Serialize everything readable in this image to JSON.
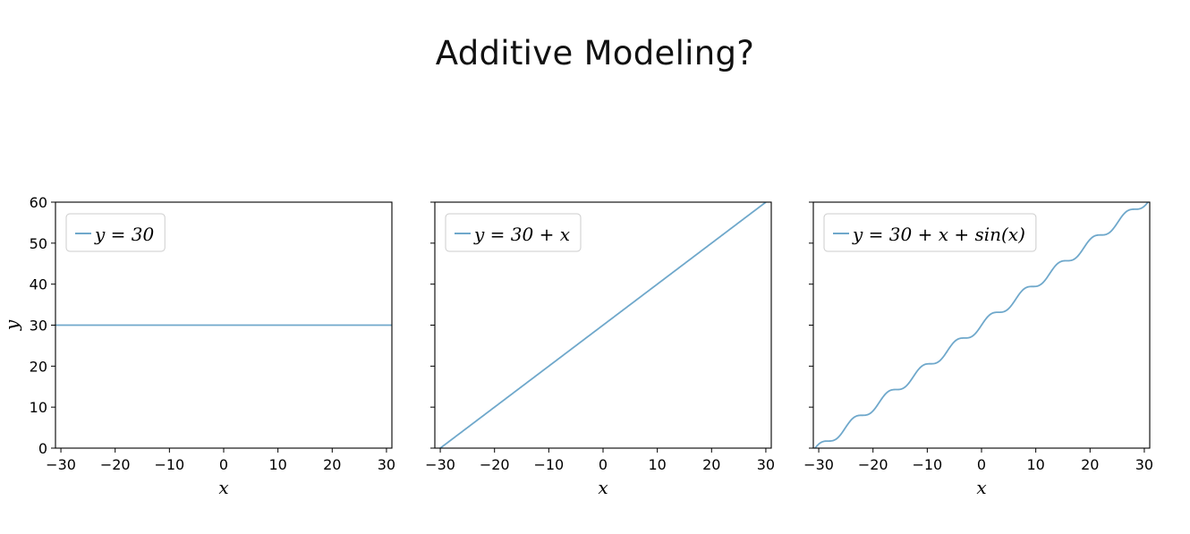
{
  "slide": {
    "title": "Additive Modeling?"
  },
  "chart_data": [
    {
      "type": "line",
      "xlabel": "x",
      "ylabel": "y",
      "xlim": [
        -31,
        31
      ],
      "ylim": [
        0,
        60
      ],
      "xticks": [
        -30,
        -20,
        -10,
        0,
        10,
        20,
        30
      ],
      "yticks": [
        0,
        10,
        20,
        30,
        40,
        50,
        60
      ],
      "xtick_labels": [
        "−30",
        "−20",
        "−10",
        "0",
        "10",
        "20",
        "30"
      ],
      "ytick_labels": [
        "0",
        "10",
        "20",
        "30",
        "40",
        "50",
        "60"
      ],
      "show_yticklabels": true,
      "grid": false,
      "legend_position": "top-left",
      "series": [
        {
          "name": "y = 30",
          "equation": "y = 30",
          "color": "#6fa8cb",
          "x_range": [
            -31,
            31
          ]
        }
      ]
    },
    {
      "type": "line",
      "xlabel": "x",
      "ylabel": "",
      "xlim": [
        -31,
        31
      ],
      "ylim": [
        0,
        60
      ],
      "xticks": [
        -30,
        -20,
        -10,
        0,
        10,
        20,
        30
      ],
      "yticks": [
        0,
        10,
        20,
        30,
        40,
        50,
        60
      ],
      "xtick_labels": [
        "−30",
        "−20",
        "−10",
        "0",
        "10",
        "20",
        "30"
      ],
      "ytick_labels": [],
      "show_yticklabels": false,
      "grid": false,
      "legend_position": "top-left",
      "series": [
        {
          "name": "y = 30 + x",
          "equation": "y = 30 + x",
          "color": "#6fa8cb",
          "x_range": [
            -31,
            31
          ]
        }
      ]
    },
    {
      "type": "line",
      "xlabel": "x",
      "ylabel": "",
      "xlim": [
        -31,
        31
      ],
      "ylim": [
        0,
        60
      ],
      "xticks": [
        -30,
        -20,
        -10,
        0,
        10,
        20,
        30
      ],
      "yticks": [
        0,
        10,
        20,
        30,
        40,
        50,
        60
      ],
      "xtick_labels": [
        "−30",
        "−20",
        "−10",
        "0",
        "10",
        "20",
        "30"
      ],
      "ytick_labels": [],
      "show_yticklabels": false,
      "grid": false,
      "legend_position": "top-left",
      "series": [
        {
          "name": "y = 30 + x + sin(x)",
          "equation": "y = 30 + x + sin(x)",
          "color": "#6fa8cb",
          "x_range": [
            -31,
            31
          ]
        }
      ]
    }
  ]
}
